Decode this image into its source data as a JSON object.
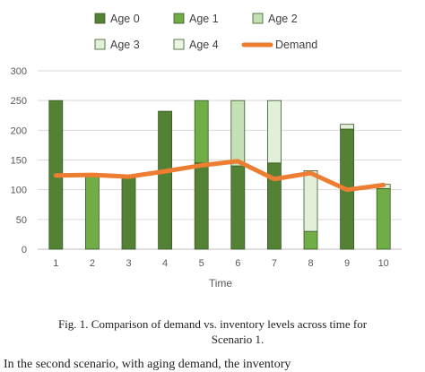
{
  "chart_data": {
    "type": "bar",
    "stacked": true,
    "xlabel": "Time",
    "ylabel": "",
    "categories": [
      "1",
      "2",
      "3",
      "4",
      "5",
      "6",
      "7",
      "8",
      "9",
      "10"
    ],
    "ylim": [
      0,
      300
    ],
    "yticks": [
      0,
      50,
      100,
      150,
      200,
      250,
      300
    ],
    "grid": true,
    "legend_position": "top",
    "series": [
      {
        "name": "Age 0",
        "color": "#548235",
        "values": [
          250,
          0,
          120,
          232,
          145,
          140,
          145,
          0,
          202,
          0
        ]
      },
      {
        "name": "Age 1",
        "color": "#70ad47",
        "values": [
          0,
          125,
          0,
          0,
          105,
          0,
          0,
          30,
          0,
          102
        ]
      },
      {
        "name": "Age 2",
        "color": "#c5e0b4",
        "values": [
          0,
          0,
          0,
          0,
          0,
          110,
          0,
          0,
          0,
          0
        ]
      },
      {
        "name": "Age 3",
        "color": "#e2f0d9",
        "values": [
          0,
          0,
          0,
          0,
          0,
          0,
          105,
          102,
          8,
          7
        ]
      },
      {
        "name": "Age 4",
        "color": "#ebf5e4",
        "values": [
          0,
          0,
          0,
          0,
          0,
          0,
          0,
          0,
          0,
          0
        ]
      }
    ],
    "line_series": {
      "name": "Demand",
      "color": "#ed7d31",
      "values": [
        124,
        125,
        122,
        131,
        141,
        148,
        118,
        128,
        100,
        108
      ]
    }
  },
  "caption": {
    "line1": "Fig. 1.  Comparison of demand vs. inventory levels across time for",
    "line2": "Scenario 1."
  },
  "cut_text": "In the second scenario, with aging demand, the inventory"
}
